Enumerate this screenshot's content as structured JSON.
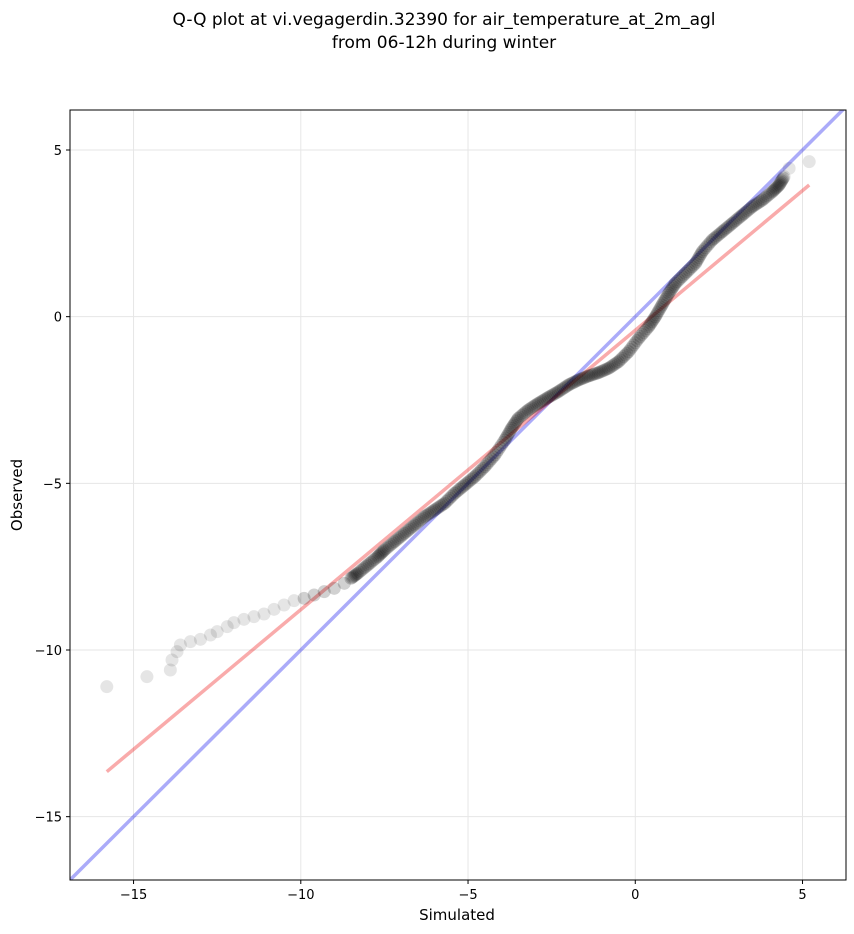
{
  "chart_data": {
    "type": "scatter",
    "title": [
      "Q-Q plot at vi.vegagerdin.32390 for air_temperature_at_2m_agl",
      "from 06-12h during winter"
    ],
    "xlabel": "Simulated",
    "ylabel": "Observed",
    "xlim": [
      -16.9,
      6.3
    ],
    "ylim": [
      -16.9,
      6.2
    ],
    "xticks": [
      -15,
      -10,
      -5,
      0,
      5
    ],
    "xtick_labels": [
      "−15",
      "−10",
      "−5",
      "0",
      "5"
    ],
    "yticks": [
      -15,
      -10,
      -5,
      0,
      5
    ],
    "ytick_labels": [
      "−15",
      "−10",
      "−5",
      "0",
      "5"
    ],
    "grid": true,
    "series": [
      {
        "role": "quantile-points",
        "color": "#000000",
        "points": [
          [
            -15.8,
            -11.1
          ],
          [
            -14.6,
            -10.8
          ],
          [
            -13.9,
            -10.6
          ],
          [
            -13.85,
            -10.3
          ],
          [
            -13.7,
            -10.05
          ],
          [
            -13.6,
            -9.85
          ],
          [
            -13.3,
            -9.75
          ],
          [
            -13.0,
            -9.68
          ],
          [
            -12.7,
            -9.55
          ],
          [
            -12.5,
            -9.45
          ],
          [
            -12.2,
            -9.3
          ],
          [
            -12.0,
            -9.18
          ],
          [
            -11.7,
            -9.08
          ],
          [
            -11.4,
            -9.0
          ],
          [
            -11.1,
            -8.92
          ],
          [
            -10.8,
            -8.78
          ],
          [
            -10.5,
            -8.65
          ],
          [
            -10.2,
            -8.52
          ],
          [
            -9.9,
            -8.45
          ],
          [
            -9.6,
            -8.35
          ],
          [
            -9.3,
            -8.25
          ],
          [
            -9.0,
            -8.15
          ],
          [
            -8.7,
            -8.0
          ],
          [
            -8.5,
            -7.85
          ],
          [
            -8.3,
            -7.7
          ],
          [
            -8.0,
            -7.45
          ],
          [
            -7.7,
            -7.2
          ],
          [
            -7.5,
            -7.0
          ],
          [
            -7.2,
            -6.75
          ],
          [
            -6.9,
            -6.5
          ],
          [
            -6.6,
            -6.25
          ],
          [
            -6.3,
            -6.0
          ],
          [
            -6.0,
            -5.8
          ],
          [
            -5.7,
            -5.6
          ],
          [
            -5.4,
            -5.3
          ],
          [
            -5.1,
            -5.05
          ],
          [
            -4.8,
            -4.8
          ],
          [
            -4.5,
            -4.5
          ],
          [
            -4.2,
            -4.15
          ],
          [
            -3.9,
            -3.7
          ],
          [
            -3.7,
            -3.35
          ],
          [
            -3.5,
            -3.05
          ],
          [
            -3.2,
            -2.8
          ],
          [
            -2.9,
            -2.6
          ],
          [
            -2.6,
            -2.42
          ],
          [
            -2.3,
            -2.25
          ],
          [
            -2.0,
            -2.05
          ],
          [
            -1.7,
            -1.9
          ],
          [
            -1.4,
            -1.78
          ],
          [
            -1.1,
            -1.68
          ],
          [
            -0.8,
            -1.55
          ],
          [
            -0.5,
            -1.35
          ],
          [
            -0.2,
            -1.05
          ],
          [
            0.1,
            -0.65
          ],
          [
            0.4,
            -0.3
          ],
          [
            0.6,
            0.0
          ],
          [
            0.8,
            0.35
          ],
          [
            1.0,
            0.7
          ],
          [
            1.2,
            1.0
          ],
          [
            1.5,
            1.3
          ],
          [
            1.8,
            1.6
          ],
          [
            2.0,
            1.95
          ],
          [
            2.3,
            2.3
          ],
          [
            2.6,
            2.55
          ],
          [
            2.9,
            2.8
          ],
          [
            3.2,
            3.05
          ],
          [
            3.5,
            3.3
          ],
          [
            3.8,
            3.5
          ],
          [
            4.1,
            3.75
          ],
          [
            4.3,
            3.95
          ],
          [
            4.45,
            4.2
          ],
          [
            4.6,
            4.45
          ],
          [
            5.2,
            4.65
          ]
        ]
      },
      {
        "role": "one-to-one-line",
        "color": "#0000ee",
        "points": [
          [
            -17.0,
            -17.0
          ],
          [
            6.3,
            6.3
          ]
        ]
      },
      {
        "role": "linear-fit-line",
        "color": "#ee0000",
        "points": [
          [
            -15.8,
            -13.65
          ],
          [
            5.2,
            3.95
          ]
        ]
      }
    ]
  }
}
